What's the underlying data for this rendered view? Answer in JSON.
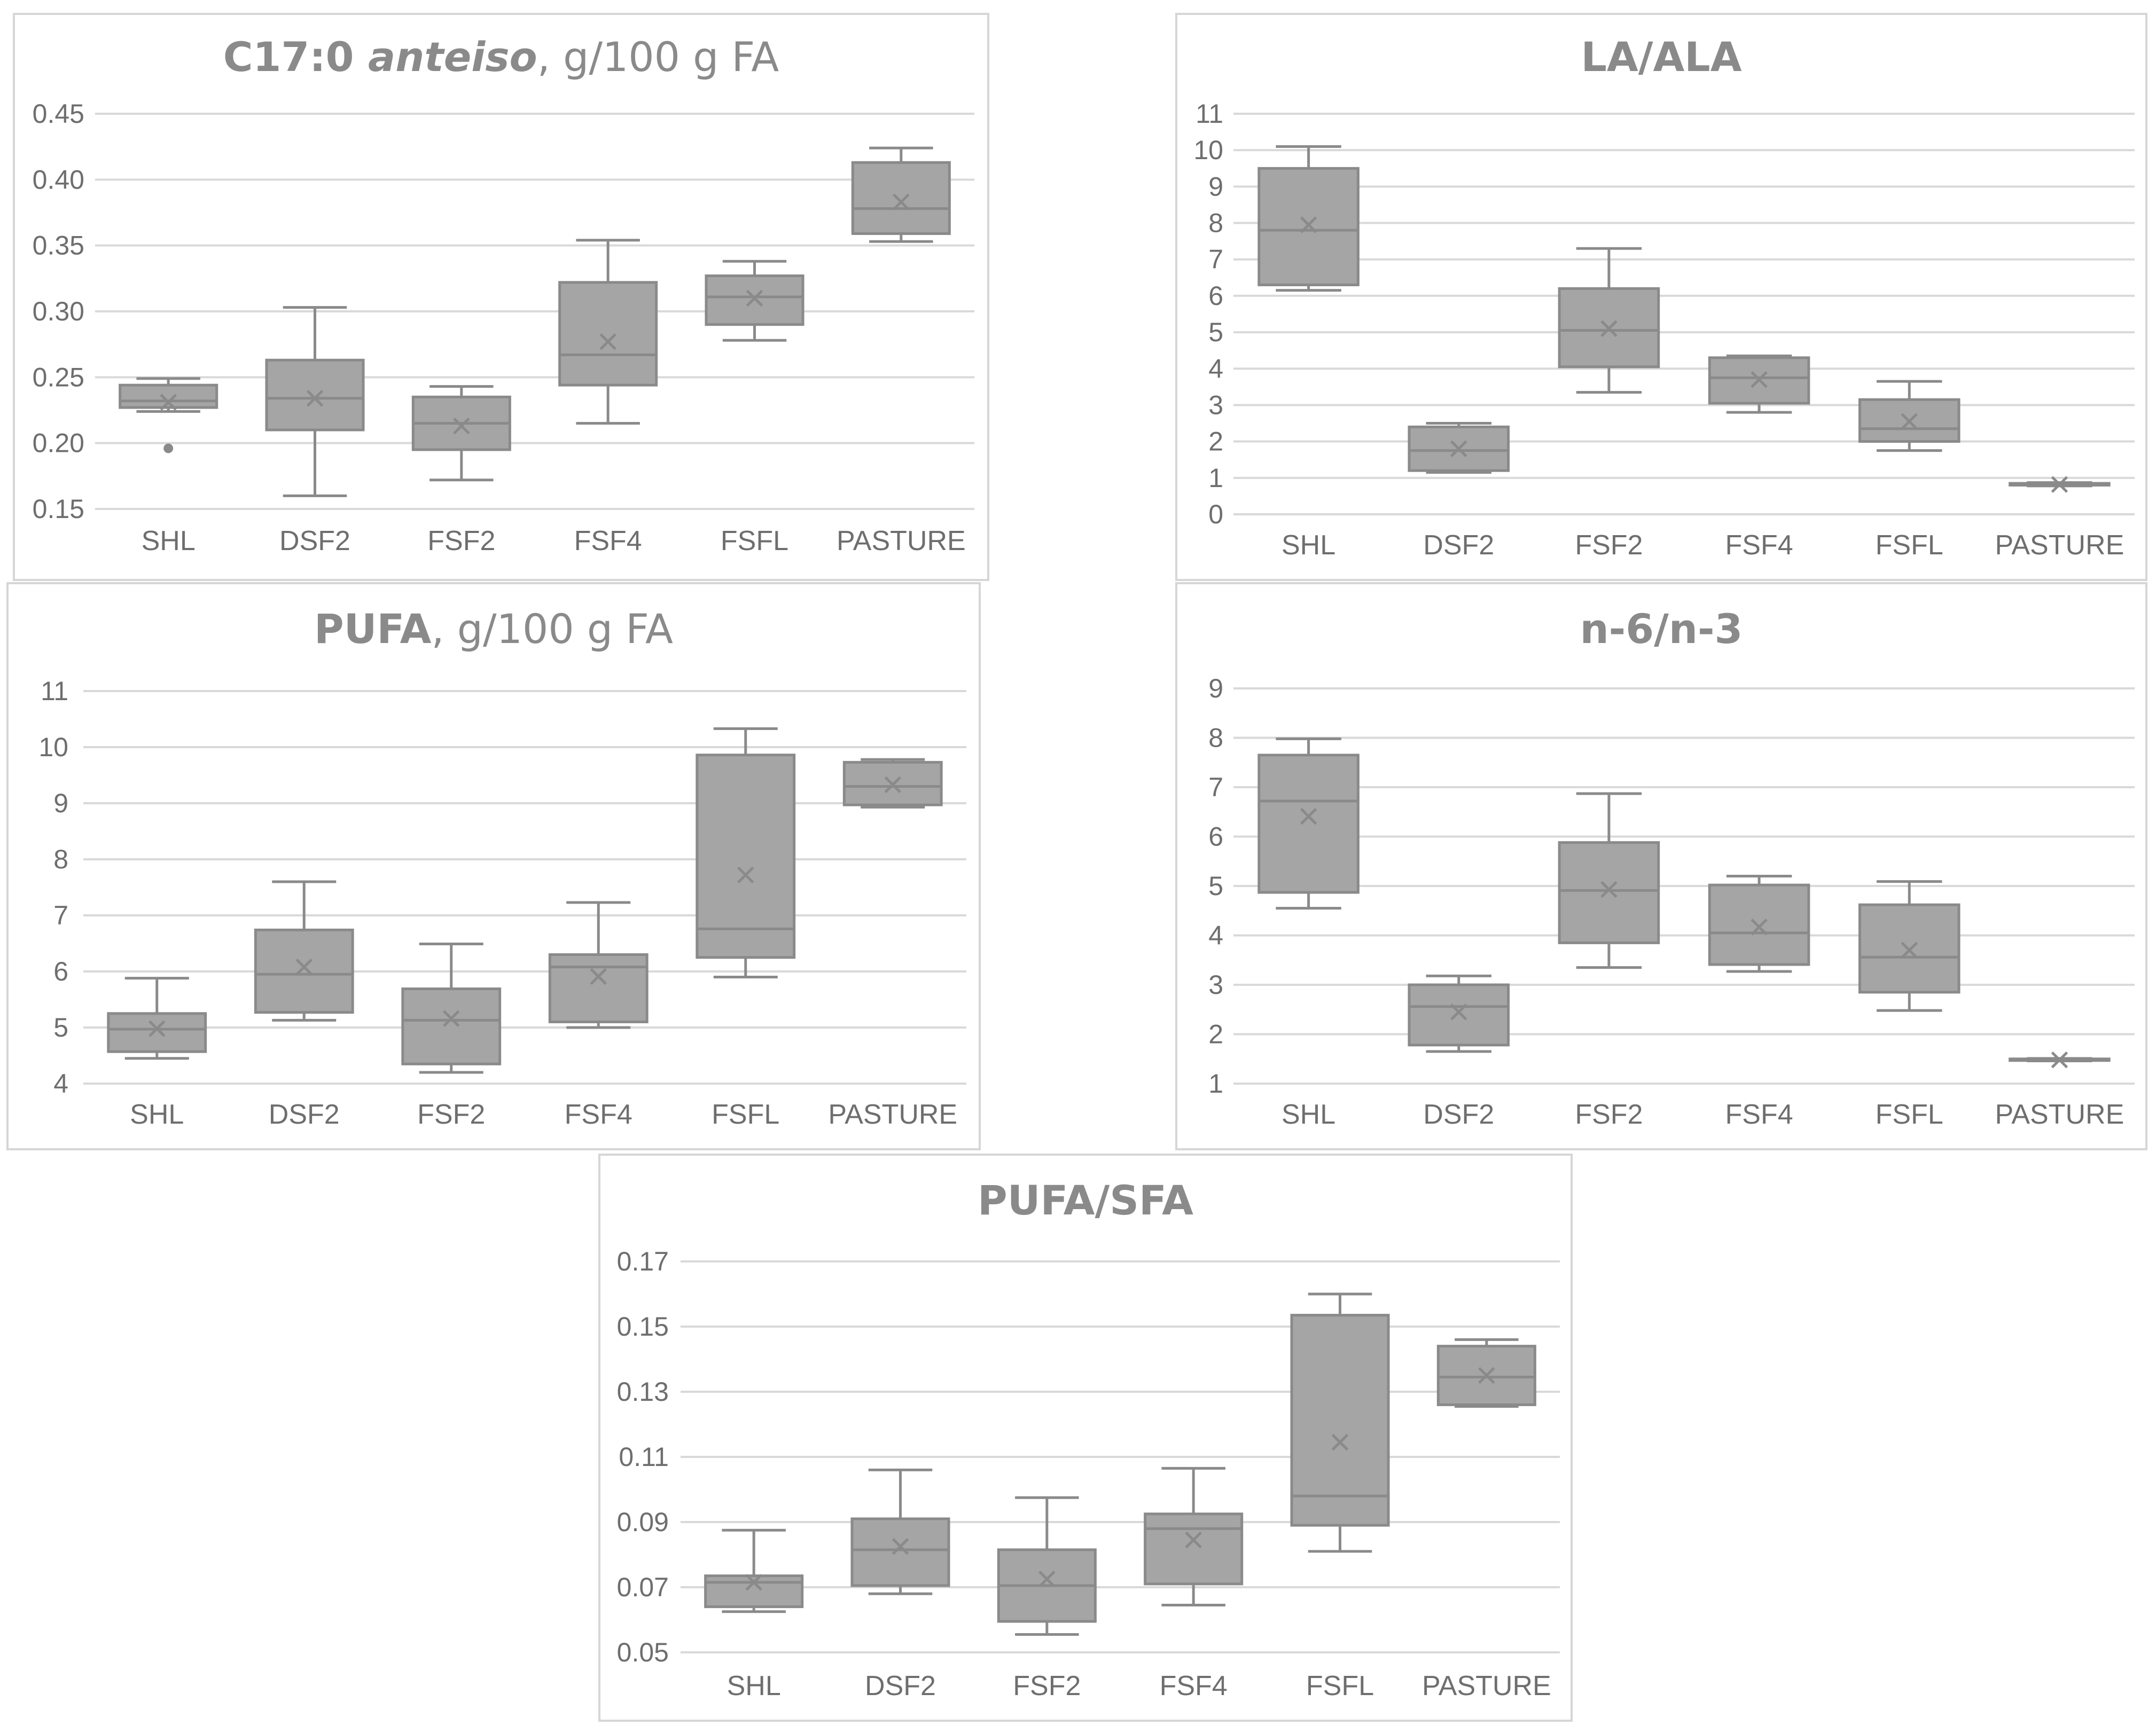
{
  "chart_data": [
    {
      "id": "c17",
      "type": "box",
      "title_parts": [
        {
          "text": "C17:0 ",
          "style": "b"
        },
        {
          "text": "anteiso",
          "style": "bi"
        },
        {
          "text": ", g/100 g FA",
          "style": "n"
        }
      ],
      "categories": [
        "SHL",
        "DSF2",
        "FSF2",
        "FSF4",
        "FSFL",
        "PASTURE"
      ],
      "ylim": [
        0.15,
        0.45
      ],
      "yticks": [
        "0.15",
        "0.20",
        "0.25",
        "0.30",
        "0.35",
        "0.40",
        "0.45"
      ],
      "boxes": [
        {
          "min": 0.224,
          "q1": 0.227,
          "median": 0.232,
          "q3": 0.244,
          "max": 0.249,
          "mean": 0.231,
          "outliers": [
            0.196
          ]
        },
        {
          "min": 0.16,
          "q1": 0.21,
          "median": 0.234,
          "q3": 0.263,
          "max": 0.303,
          "mean": 0.234,
          "outliers": []
        },
        {
          "min": 0.172,
          "q1": 0.195,
          "median": 0.215,
          "q3": 0.235,
          "max": 0.243,
          "mean": 0.213,
          "outliers": []
        },
        {
          "min": 0.215,
          "q1": 0.244,
          "median": 0.267,
          "q3": 0.322,
          "max": 0.354,
          "mean": 0.277,
          "outliers": []
        },
        {
          "min": 0.278,
          "q1": 0.29,
          "median": 0.311,
          "q3": 0.327,
          "max": 0.338,
          "mean": 0.31,
          "outliers": []
        },
        {
          "min": 0.353,
          "q1": 0.359,
          "median": 0.378,
          "q3": 0.413,
          "max": 0.424,
          "mean": 0.383,
          "outliers": []
        }
      ]
    },
    {
      "id": "laala",
      "type": "box",
      "title_parts": [
        {
          "text": "LA/ALA",
          "style": "b"
        }
      ],
      "categories": [
        "SHL",
        "DSF2",
        "FSF2",
        "FSF4",
        "FSFL",
        "PASTURE"
      ],
      "ylim": [
        0,
        11
      ],
      "yticks": [
        "0",
        "1",
        "2",
        "3",
        "4",
        "5",
        "6",
        "7",
        "8",
        "9",
        "10",
        "11"
      ],
      "boxes": [
        {
          "min": 6.15,
          "q1": 6.3,
          "median": 7.8,
          "q3": 9.5,
          "max": 10.1,
          "mean": 7.95,
          "outliers": []
        },
        {
          "min": 1.15,
          "q1": 1.2,
          "median": 1.75,
          "q3": 2.4,
          "max": 2.5,
          "mean": 1.8,
          "outliers": []
        },
        {
          "min": 3.35,
          "q1": 4.05,
          "median": 5.05,
          "q3": 6.2,
          "max": 7.3,
          "mean": 5.1,
          "outliers": []
        },
        {
          "min": 2.8,
          "q1": 3.05,
          "median": 3.75,
          "q3": 4.3,
          "max": 4.35,
          "mean": 3.7,
          "outliers": []
        },
        {
          "min": 1.75,
          "q1": 2.0,
          "median": 2.35,
          "q3": 3.15,
          "max": 3.65,
          "mean": 2.55,
          "outliers": []
        },
        {
          "min": 0.78,
          "q1": 0.8,
          "median": 0.82,
          "q3": 0.85,
          "max": 0.87,
          "mean": 0.82,
          "outliers": []
        }
      ]
    },
    {
      "id": "pufa",
      "type": "box",
      "title_parts": [
        {
          "text": "PUFA",
          "style": "b"
        },
        {
          "text": ", g/100 g FA",
          "style": "n"
        }
      ],
      "categories": [
        "SHL",
        "DSF2",
        "FSF2",
        "FSF4",
        "FSFL",
        "PASTURE"
      ],
      "ylim": [
        4,
        11
      ],
      "yticks": [
        "4",
        "5",
        "6",
        "7",
        "8",
        "9",
        "10",
        "11"
      ],
      "boxes": [
        {
          "min": 4.45,
          "q1": 4.57,
          "median": 4.97,
          "q3": 5.25,
          "max": 5.88,
          "mean": 4.98,
          "outliers": []
        },
        {
          "min": 5.13,
          "q1": 5.27,
          "median": 5.95,
          "q3": 6.74,
          "max": 7.6,
          "mean": 6.08,
          "outliers": []
        },
        {
          "min": 4.2,
          "q1": 4.35,
          "median": 5.13,
          "q3": 5.69,
          "max": 6.49,
          "mean": 5.16,
          "outliers": []
        },
        {
          "min": 5.0,
          "q1": 5.1,
          "median": 6.08,
          "q3": 6.3,
          "max": 7.23,
          "mean": 5.91,
          "outliers": []
        },
        {
          "min": 5.9,
          "q1": 6.25,
          "median": 6.76,
          "q3": 9.86,
          "max": 10.33,
          "mean": 7.72,
          "outliers": []
        },
        {
          "min": 8.93,
          "q1": 8.97,
          "median": 9.3,
          "q3": 9.73,
          "max": 9.78,
          "mean": 9.33,
          "outliers": []
        }
      ]
    },
    {
      "id": "n6n3",
      "type": "box",
      "title_parts": [
        {
          "text": "n-6/n-3",
          "style": "b"
        }
      ],
      "categories": [
        "SHL",
        "DSF2",
        "FSF2",
        "FSF4",
        "FSFL",
        "PASTURE"
      ],
      "ylim": [
        1,
        9
      ],
      "yticks": [
        "1",
        "2",
        "3",
        "4",
        "5",
        "6",
        "7",
        "8",
        "9"
      ],
      "boxes": [
        {
          "min": 4.55,
          "q1": 4.87,
          "median": 6.72,
          "q3": 7.65,
          "max": 7.98,
          "mean": 6.41,
          "outliers": []
        },
        {
          "min": 1.65,
          "q1": 1.78,
          "median": 2.56,
          "q3": 3.0,
          "max": 3.18,
          "mean": 2.45,
          "outliers": []
        },
        {
          "min": 3.35,
          "q1": 3.85,
          "median": 4.91,
          "q3": 5.88,
          "max": 6.87,
          "mean": 4.93,
          "outliers": []
        },
        {
          "min": 3.27,
          "q1": 3.41,
          "median": 4.05,
          "q3": 5.02,
          "max": 5.2,
          "mean": 4.17,
          "outliers": []
        },
        {
          "min": 2.48,
          "q1": 2.85,
          "median": 3.56,
          "q3": 4.62,
          "max": 5.09,
          "mean": 3.7,
          "outliers": []
        },
        {
          "min": 1.46,
          "q1": 1.47,
          "median": 1.48,
          "q3": 1.5,
          "max": 1.51,
          "mean": 1.48,
          "outliers": []
        }
      ]
    },
    {
      "id": "pufasfa",
      "type": "box",
      "title_parts": [
        {
          "text": "PUFA/SFA",
          "style": "b"
        }
      ],
      "categories": [
        "SHL",
        "DSF2",
        "FSF2",
        "FSF4",
        "FSFL",
        "PASTURE"
      ],
      "ylim": [
        0.05,
        0.17
      ],
      "yticks": [
        "0.05",
        "0.07",
        "0.09",
        "0.11",
        "0.13",
        "0.15",
        "0.17"
      ],
      "boxes": [
        {
          "min": 0.0625,
          "q1": 0.064,
          "median": 0.0715,
          "q3": 0.0735,
          "max": 0.0875,
          "mean": 0.0715,
          "outliers": []
        },
        {
          "min": 0.068,
          "q1": 0.0705,
          "median": 0.0815,
          "q3": 0.091,
          "max": 0.106,
          "mean": 0.0825,
          "outliers": []
        },
        {
          "min": 0.0555,
          "q1": 0.0595,
          "median": 0.0705,
          "q3": 0.0815,
          "max": 0.0975,
          "mean": 0.0725,
          "outliers": []
        },
        {
          "min": 0.0645,
          "q1": 0.071,
          "median": 0.088,
          "q3": 0.0925,
          "max": 0.1065,
          "mean": 0.0845,
          "outliers": []
        },
        {
          "min": 0.081,
          "q1": 0.089,
          "median": 0.098,
          "q3": 0.1535,
          "max": 0.16,
          "mean": 0.1145,
          "outliers": []
        },
        {
          "min": 0.1255,
          "q1": 0.126,
          "median": 0.1345,
          "q3": 0.144,
          "max": 0.146,
          "mean": 0.135,
          "outliers": []
        }
      ]
    }
  ]
}
